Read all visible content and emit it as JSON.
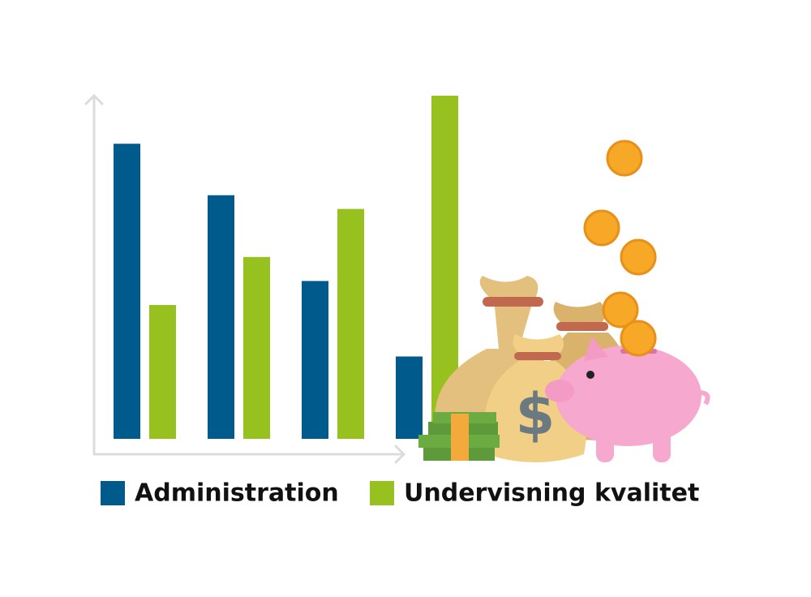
{
  "chart_data": {
    "type": "bar",
    "categories": [
      null,
      null,
      null,
      null
    ],
    "series": [
      {
        "name": "Administration",
        "color": "#005b8c",
        "values": [
          86,
          71,
          46,
          24
        ]
      },
      {
        "name": "Undervisning kvalitet",
        "color": "#96c11f",
        "values": [
          39,
          53,
          67,
          100
        ]
      }
    ],
    "ylim": [
      0,
      100
    ]
  }
}
